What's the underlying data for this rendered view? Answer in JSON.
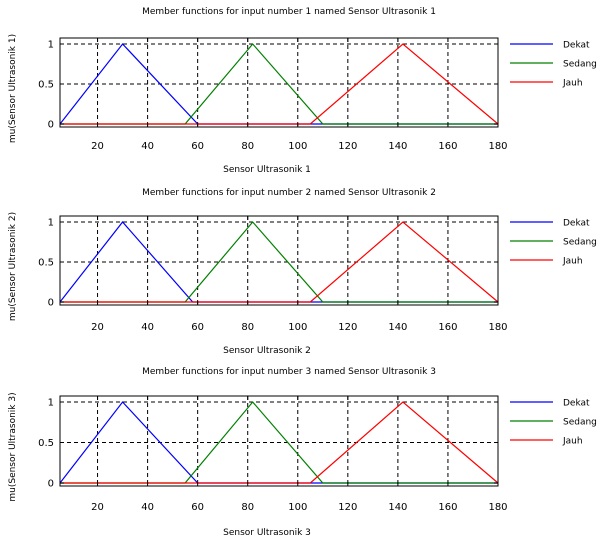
{
  "chart_data": [
    {
      "type": "line",
      "title": "Member functions for input number 1 named Sensor Ultrasonik 1",
      "xlabel": "Sensor Ultrasonik 1",
      "ylabel": "mu(Sensor Ultrasonik 1)",
      "xlim": [
        5,
        180
      ],
      "ylim": [
        0,
        1
      ],
      "xticks": [
        20,
        40,
        60,
        80,
        100,
        120,
        140,
        160,
        180
      ],
      "yticks": [
        0,
        0.5,
        1
      ],
      "grid": true,
      "legend": "right",
      "series": [
        {
          "name": "Dekat",
          "color": "#0000ff",
          "points": [
            [
              5,
              0
            ],
            [
              30,
              1
            ],
            [
              60,
              0
            ],
            [
              180,
              0
            ]
          ]
        },
        {
          "name": "Sedang",
          "color": "#008000",
          "points": [
            [
              5,
              0
            ],
            [
              55,
              0
            ],
            [
              82,
              1
            ],
            [
              110,
              0
            ],
            [
              180,
              0
            ]
          ]
        },
        {
          "name": "Jauh",
          "color": "#ff0000",
          "points": [
            [
              5,
              0
            ],
            [
              105,
              0
            ],
            [
              142,
              1
            ],
            [
              180,
              0
            ]
          ]
        }
      ]
    },
    {
      "type": "line",
      "title": "Member functions for input number 2 named Sensor Ultrasonik 2",
      "xlabel": "Sensor Ultrasonik 2",
      "ylabel": "mu(Sensor Ultrasonik 2)",
      "xlim": [
        5,
        180
      ],
      "ylim": [
        0,
        1
      ],
      "xticks": [
        20,
        40,
        60,
        80,
        100,
        120,
        140,
        160,
        180
      ],
      "yticks": [
        0,
        0.5,
        1
      ],
      "grid": true,
      "legend": "right",
      "series": [
        {
          "name": "Dekat",
          "color": "#0000ff",
          "points": [
            [
              5,
              0
            ],
            [
              30,
              1
            ],
            [
              58,
              0
            ],
            [
              180,
              0
            ]
          ]
        },
        {
          "name": "Sedang",
          "color": "#008000",
          "points": [
            [
              5,
              0
            ],
            [
              55,
              0
            ],
            [
              82,
              1
            ],
            [
              110,
              0
            ],
            [
              180,
              0
            ]
          ]
        },
        {
          "name": "Jauh",
          "color": "#ff0000",
          "points": [
            [
              5,
              0
            ],
            [
              105,
              0
            ],
            [
              142,
              1
            ],
            [
              180,
              0
            ]
          ]
        }
      ]
    },
    {
      "type": "line",
      "title": "Member functions for input number 3 named Sensor Ultrasonik 3",
      "xlabel": "Sensor Ultrasonik 3",
      "ylabel": "mu(Sensor Ultrasonik 3)",
      "xlim": [
        5,
        180
      ],
      "ylim": [
        0,
        1
      ],
      "xticks": [
        20,
        40,
        60,
        80,
        100,
        120,
        140,
        160,
        180
      ],
      "yticks": [
        0,
        0.5,
        1
      ],
      "grid": true,
      "legend": "right",
      "series": [
        {
          "name": "Dekat",
          "color": "#0000ff",
          "points": [
            [
              5,
              0
            ],
            [
              30,
              1
            ],
            [
              60,
              0
            ],
            [
              180,
              0
            ]
          ]
        },
        {
          "name": "Sedang",
          "color": "#008000",
          "points": [
            [
              5,
              0
            ],
            [
              55,
              0
            ],
            [
              82,
              1
            ],
            [
              110,
              0
            ],
            [
              180,
              0
            ]
          ]
        },
        {
          "name": "Jauh",
          "color": "#ff0000",
          "points": [
            [
              5,
              0
            ],
            [
              105,
              0
            ],
            [
              142,
              1
            ],
            [
              180,
              0
            ]
          ]
        }
      ]
    }
  ]
}
